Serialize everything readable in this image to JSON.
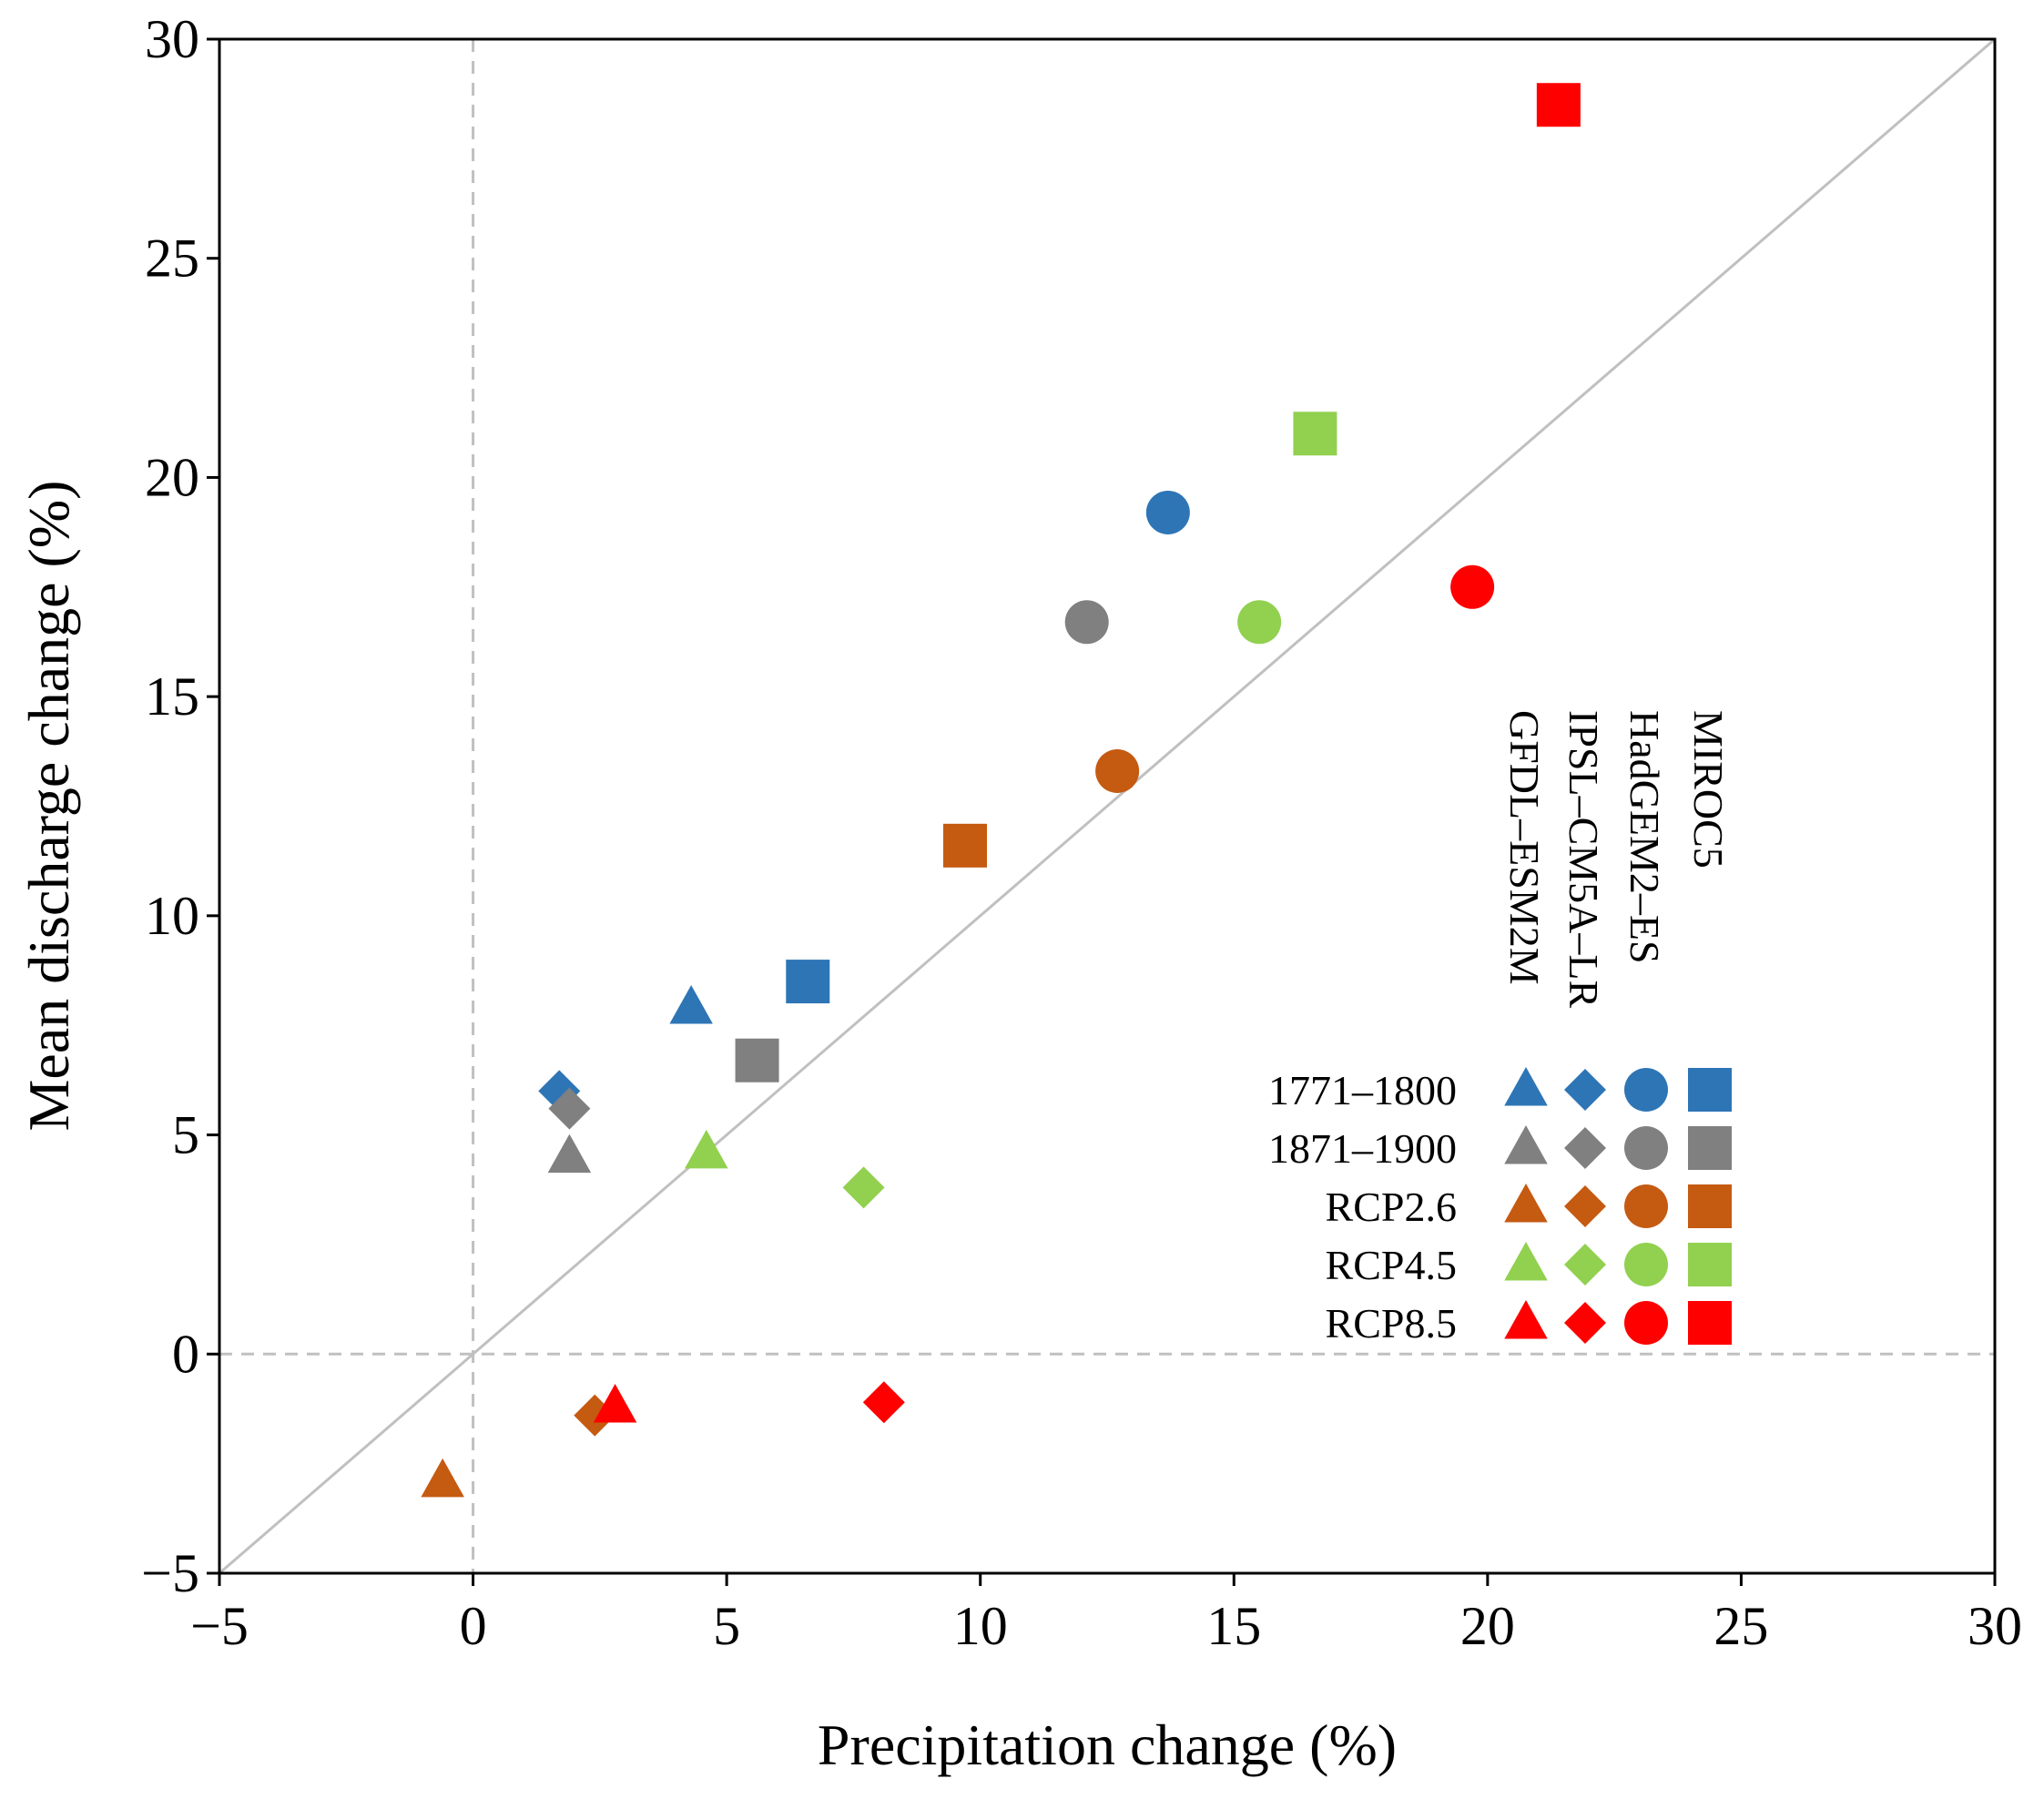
{
  "chart_data": {
    "type": "scatter",
    "title": "",
    "xlabel": "Precipitation change (%)",
    "ylabel": "Mean discharge change (%)",
    "xlim": [
      -5,
      30
    ],
    "ylim": [
      -5,
      30
    ],
    "xticks": [
      -5,
      0,
      5,
      10,
      15,
      20,
      25,
      30
    ],
    "yticks": [
      -5,
      0,
      5,
      10,
      15,
      20,
      25,
      30
    ],
    "xtick_labels": [
      "−5",
      "0",
      "5",
      "10",
      "15",
      "20",
      "25",
      "30"
    ],
    "ytick_labels": [
      "−5",
      "0",
      "5",
      "10",
      "15",
      "20",
      "25",
      "30"
    ],
    "reference_lines": [
      {
        "kind": "one-to-one",
        "color": "#c0c0c0",
        "style": "solid"
      },
      {
        "kind": "zero-x",
        "color": "#c0c0c0",
        "style": "dashed"
      },
      {
        "kind": "zero-y",
        "color": "#c0c0c0",
        "style": "dashed"
      }
    ],
    "models": [
      {
        "name": "GFDL–ESM2M",
        "marker": "triangle"
      },
      {
        "name": "IPSL–CM5A–LR",
        "marker": "diamond"
      },
      {
        "name": "HadGEM2–ES",
        "marker": "circle"
      },
      {
        "name": "MIROC5",
        "marker": "square"
      }
    ],
    "series": [
      {
        "name": "1771–1800",
        "color": "#2e75b6",
        "points": [
          [
            4.3,
            7.9
          ],
          [
            1.7,
            6.0
          ],
          [
            13.7,
            19.2
          ],
          [
            6.6,
            8.5
          ]
        ]
      },
      {
        "name": "1871–1900",
        "color": "#808080",
        "points": [
          [
            1.9,
            4.5
          ],
          [
            1.9,
            5.6
          ],
          [
            12.1,
            16.7
          ],
          [
            5.6,
            6.7
          ]
        ]
      },
      {
        "name": "RCP2.6",
        "color": "#c55a11",
        "points": [
          [
            -0.6,
            -2.9
          ],
          [
            2.4,
            -1.4
          ],
          [
            12.7,
            13.3
          ],
          [
            9.7,
            11.6
          ]
        ]
      },
      {
        "name": "RCP4.5",
        "color": "#92d050",
        "points": [
          [
            4.6,
            4.6
          ],
          [
            7.7,
            3.8
          ],
          [
            15.5,
            16.7
          ],
          [
            16.6,
            21.0
          ]
        ]
      },
      {
        "name": "RCP8.5",
        "color": "#ff0000",
        "points": [
          [
            2.8,
            -1.2
          ],
          [
            8.1,
            -1.1
          ],
          [
            19.7,
            17.5
          ],
          [
            21.4,
            28.5
          ]
        ]
      }
    ],
    "legend_position": "right-center"
  }
}
